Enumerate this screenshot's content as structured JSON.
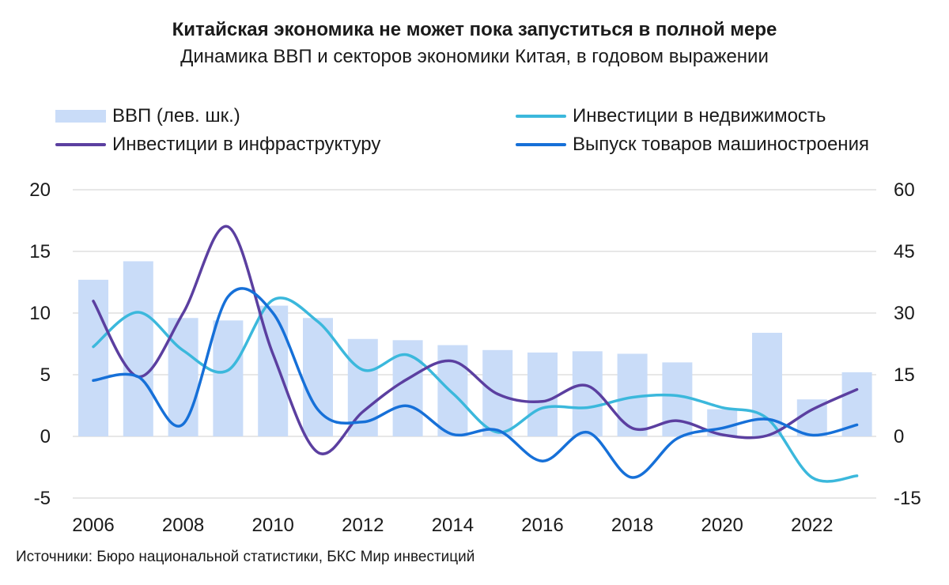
{
  "header": {
    "title": "Китайская экономика не может пока запуститься в полной мере",
    "subtitle": "Динамика ВВП и секторов экономики Китая, в годовом выражении"
  },
  "legend": [
    {
      "label": "ВВП (лев. шк.)",
      "color": "#c9dcf8",
      "kind": "bar"
    },
    {
      "label": "Инвестиции в недвижимость",
      "color": "#3bb8dc",
      "kind": "line"
    },
    {
      "label": "Инвестиции в инфраструктуру",
      "color": "#5b3fa0",
      "kind": "line"
    },
    {
      "label": "Выпуск товаров машиностроения",
      "color": "#1670d8",
      "kind": "line"
    }
  ],
  "footer": {
    "source": "Источники: Бюро национальной статистики, БКС Мир инвестиций"
  },
  "chart_data": {
    "type": "bar+line",
    "title": "Китайская экономика не может пока запуститься в полной мере",
    "subtitle": "Динамика ВВП и секторов экономики Китая, в годовом выражении",
    "x": [
      2006,
      2007,
      2008,
      2009,
      2010,
      2011,
      2012,
      2013,
      2014,
      2015,
      2016,
      2017,
      2018,
      2019,
      2020,
      2021,
      2022,
      2023
    ],
    "x_tick_labels": [
      "2006",
      "2008",
      "2010",
      "2012",
      "2014",
      "2016",
      "2018",
      "2020",
      "2022"
    ],
    "left_axis": {
      "ylim": [
        -5,
        20
      ],
      "ticks": [
        "-5",
        "0",
        "5",
        "10",
        "15",
        "20"
      ]
    },
    "right_axis": {
      "ylim": [
        -15,
        60
      ],
      "ticks": [
        "-15",
        "0",
        "15",
        "30",
        "45",
        "60"
      ]
    },
    "grid": true,
    "series": [
      {
        "name": "ВВП (лев. шк.)",
        "type": "bar",
        "axis": "left",
        "color": "#c9dcf8",
        "values": [
          12.7,
          14.2,
          9.6,
          9.4,
          10.6,
          9.6,
          7.9,
          7.8,
          7.4,
          7.0,
          6.8,
          6.9,
          6.7,
          6.0,
          2.2,
          8.4,
          3.0,
          5.2
        ]
      },
      {
        "name": "Инвестиции в недвижимость",
        "type": "line",
        "axis": "right",
        "color": "#3bb8dc",
        "values": [
          21.8,
          30.2,
          20.9,
          16.1,
          33.2,
          27.9,
          16.2,
          19.8,
          10.5,
          1.0,
          6.9,
          7.0,
          9.5,
          9.9,
          7.0,
          4.4,
          -10.0,
          -9.6
        ]
      },
      {
        "name": "Инвестиции в инфраструктуру",
        "type": "line",
        "axis": "right",
        "color": "#5b3fa0",
        "values": [
          32.9,
          14.5,
          30.0,
          51.0,
          20.0,
          -3.9,
          6.0,
          14.0,
          18.3,
          10.3,
          8.5,
          12.3,
          2.0,
          3.8,
          0.4,
          0.2,
          6.5,
          11.4
        ]
      },
      {
        "name": "Выпуск товаров машиностроения",
        "type": "line",
        "axis": "right",
        "color": "#1670d8",
        "values": [
          13.6,
          14.5,
          3.0,
          34.0,
          30.0,
          6.5,
          3.5,
          7.4,
          0.5,
          1.5,
          -6.0,
          1.0,
          -10.0,
          -0.5,
          2.0,
          4.2,
          0.3,
          2.8
        ]
      }
    ]
  }
}
